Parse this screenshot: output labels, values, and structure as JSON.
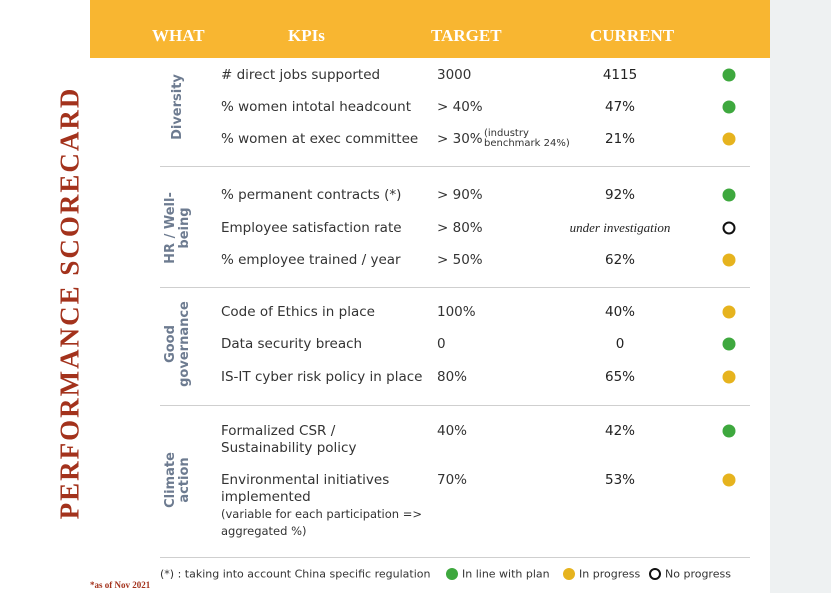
{
  "side_title": "PERFORMANCE SCORECARD",
  "date_note": "*as of Nov 2021",
  "header": [
    "WHAT",
    "KPIs",
    "TARGET",
    "CURRENT"
  ],
  "groups": [
    {
      "label": [
        "Diversity"
      ],
      "rows": [
        {
          "kpi": [
            "# direct jobs supported"
          ],
          "target": "3000",
          "current": "4115",
          "color": "#3ea83e"
        },
        {
          "kpi": [
            "% women intotal headcount"
          ],
          "target": "> 40%",
          "current": "47%",
          "color": "#3ea83e"
        },
        {
          "kpi": [
            "% women at exec committee"
          ],
          "target": "> 30%",
          "target_note": [
            "(industry",
            "benchmark 24%)"
          ],
          "current": "21%",
          "color": "#e6b31e"
        }
      ]
    },
    {
      "label": [
        "HR / Well-",
        "being"
      ],
      "rows": [
        {
          "kpi": [
            "% permanent contracts (*)"
          ],
          "target": "> 90%",
          "current": "92%",
          "color": "#3ea83e"
        },
        {
          "kpi": [
            "Employee satisfaction rate"
          ],
          "target": "> 80%",
          "current": "under investigation",
          "current_style": "italic",
          "color": "none"
        },
        {
          "kpi": [
            "% employee trained / year"
          ],
          "target": "> 50%",
          "current": "62%",
          "color": "#e6b31e"
        }
      ]
    },
    {
      "label": [
        "Good",
        "governance"
      ],
      "rows": [
        {
          "kpi": [
            "Code of Ethics in place"
          ],
          "target": "100%",
          "current": "40%",
          "color": "#e6b31e"
        },
        {
          "kpi": [
            "Data security breach"
          ],
          "target": "0",
          "current": "0",
          "color": "#3ea83e"
        },
        {
          "kpi": [
            "IS-IT cyber risk policy in place"
          ],
          "target": "80%",
          "current": "65%",
          "color": "#e6b31e"
        }
      ]
    },
    {
      "label": [
        "Climate",
        "action"
      ],
      "rows": [
        {
          "kpi": [
            "Formalized CSR /",
            "Sustainability policy"
          ],
          "target": "40%",
          "current": "42%",
          "color": "#3ea83e"
        },
        {
          "kpi": [
            "Environmental initiatives",
            "implemented",
            "(variable for each participation =>",
            "aggregated %)"
          ],
          "target": "70%",
          "current": "53%",
          "color": "#e6b31e"
        }
      ]
    }
  ],
  "footnote": "(*) : taking into account China specific regulation",
  "legend": [
    {
      "label": "In line with plan",
      "color": "#3ea83e"
    },
    {
      "label": "In progress",
      "color": "#e6b31e"
    },
    {
      "label": "No progress",
      "color": "none"
    }
  ]
}
